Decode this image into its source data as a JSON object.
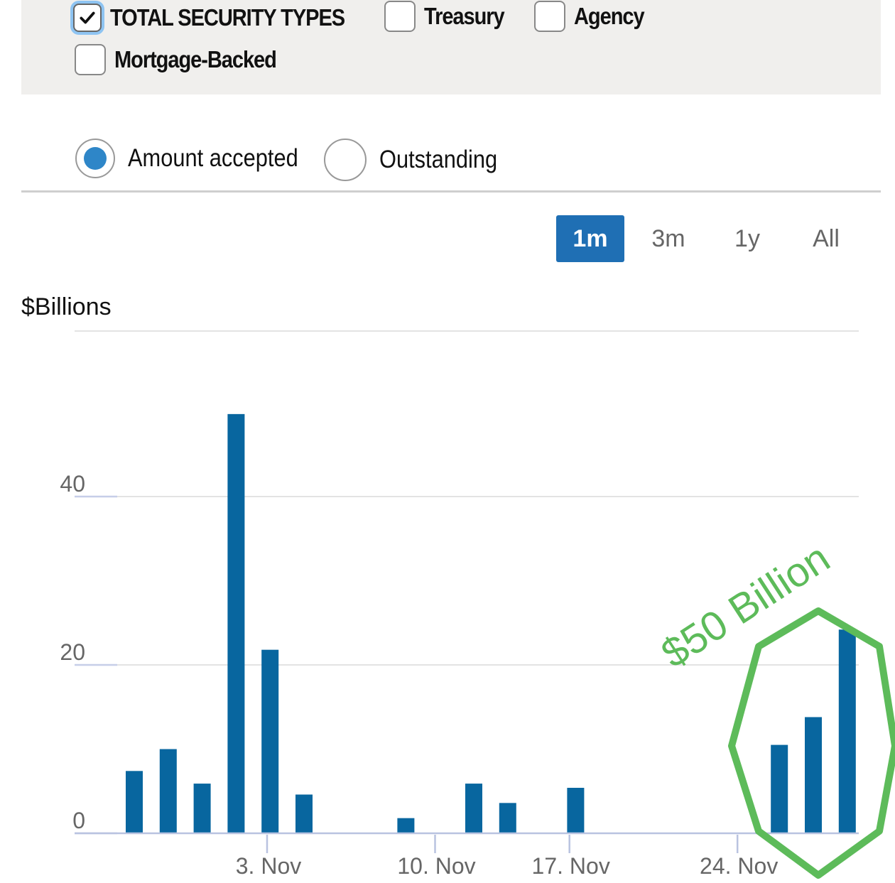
{
  "filters": {
    "items": [
      {
        "label": "TOTAL SECURITY TYPES",
        "checked": true
      },
      {
        "label": "Treasury",
        "checked": false
      },
      {
        "label": "Agency",
        "checked": false
      },
      {
        "label": "Mortgage-Backed",
        "checked": false
      }
    ]
  },
  "measure": {
    "options": [
      {
        "label": "Amount accepted",
        "selected": true
      },
      {
        "label": "Outstanding",
        "selected": false
      }
    ]
  },
  "range": {
    "options": [
      "1m",
      "3m",
      "1y",
      "All"
    ],
    "selected": "1m"
  },
  "colors": {
    "bar": "#08669f",
    "accent": "#1f6fb4",
    "annotation": "#5dbb5a"
  },
  "chart_data": {
    "type": "bar",
    "ylabel": "$Billions",
    "ylim": [
      0,
      60
    ],
    "yticks": [
      0,
      20,
      40
    ],
    "xticks": [
      {
        "label": "3. Nov",
        "x": 4
      },
      {
        "label": "10. Nov",
        "x": 9
      },
      {
        "label": "17. Nov",
        "x": 13
      },
      {
        "label": "24. Nov",
        "x": 18
      }
    ],
    "bars": [
      {
        "x": 0,
        "value": 7.4
      },
      {
        "x": 1,
        "value": 10.0
      },
      {
        "x": 2,
        "value": 5.9
      },
      {
        "x": 3,
        "value": 49.8
      },
      {
        "x": 4,
        "value": 21.8
      },
      {
        "x": 5,
        "value": 4.6
      },
      {
        "x": 8,
        "value": 1.8
      },
      {
        "x": 10,
        "value": 5.9
      },
      {
        "x": 11,
        "value": 3.6
      },
      {
        "x": 13,
        "value": 5.4
      },
      {
        "x": 19,
        "value": 10.5
      },
      {
        "x": 20,
        "value": 13.8
      },
      {
        "x": 21,
        "value": 24.2
      }
    ],
    "annotation": "$50 Billion",
    "grid": true
  }
}
